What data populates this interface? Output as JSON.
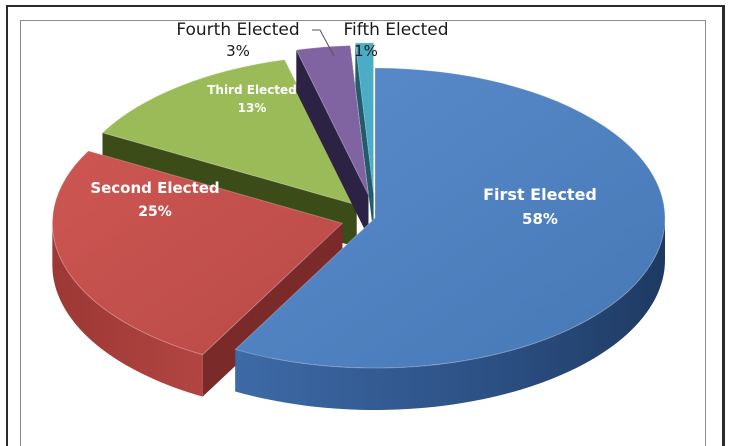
{
  "chart_data": {
    "type": "pie",
    "style": "3d-exploded",
    "title": "",
    "slices": [
      {
        "label": "First Elected",
        "value": 58,
        "display": "58%",
        "color": "#4f81bd"
      },
      {
        "label": "Second Elected",
        "value": 25,
        "display": "25%",
        "color": "#c0504d"
      },
      {
        "label": "Third Elected",
        "value": 13,
        "display": "13%",
        "color": "#9bbb59"
      },
      {
        "label": "Fourth Elected",
        "value": 3,
        "display": "3%",
        "color": "#8064a2"
      },
      {
        "label": "Fifth Elected",
        "value": 1,
        "display": "1%",
        "color": "#4bacc6"
      }
    ],
    "legend": "none",
    "label_placement": "data labels inside large slices, outside small slices"
  }
}
